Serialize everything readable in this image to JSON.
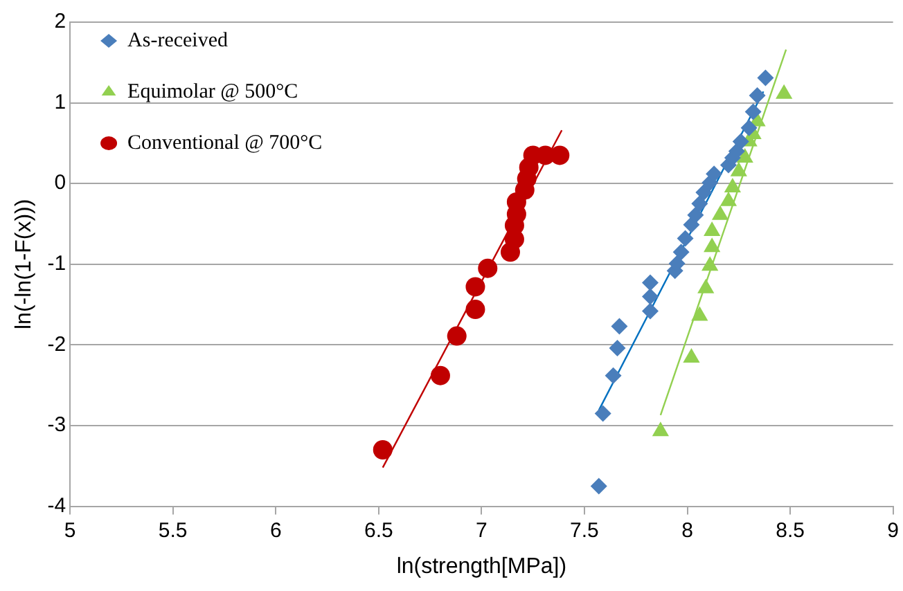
{
  "chart_data": {
    "type": "scatter",
    "xlabel": "ln(strength[MPa])",
    "ylabel": "ln(-ln(1-F(x)))",
    "xlim": [
      5,
      9
    ],
    "ylim": [
      -4,
      2
    ],
    "xticks": [
      5,
      5.5,
      6,
      6.5,
      7,
      7.5,
      8,
      8.5,
      9
    ],
    "yticks": [
      -4,
      -3,
      -2,
      -1,
      0,
      1,
      2
    ],
    "grid": "y",
    "legend": "top left",
    "series": [
      {
        "name": "As-received",
        "color": "#4a7ebb",
        "marker": "diamond",
        "x": [
          7.57,
          7.59,
          7.64,
          7.66,
          7.67,
          7.82,
          7.82,
          7.82,
          7.94,
          7.95,
          7.97,
          7.99,
          8.02,
          8.04,
          8.06,
          8.08,
          8.11,
          8.13,
          8.2,
          8.22,
          8.24,
          8.26,
          8.3,
          8.32,
          8.34,
          8.38
        ],
        "values": [
          -3.75,
          -2.85,
          -2.38,
          -2.04,
          -1.77,
          -1.58,
          -1.4,
          -1.23,
          -1.08,
          -0.99,
          -0.85,
          -0.68,
          -0.51,
          -0.39,
          -0.25,
          -0.11,
          0.01,
          0.12,
          0.23,
          0.32,
          0.4,
          0.52,
          0.69,
          0.89,
          1.09,
          1.31
        ]
      },
      {
        "name": "Equimolar @ 500°C",
        "color": "#92d050",
        "marker": "triangle",
        "x": [
          7.87,
          8.02,
          8.06,
          8.09,
          8.11,
          8.12,
          8.12,
          8.16,
          8.2,
          8.22,
          8.25,
          8.28,
          8.3,
          8.32,
          8.34,
          8.47
        ],
        "values": [
          -3.07,
          -2.16,
          -1.64,
          -1.3,
          -1.02,
          -0.79,
          -0.59,
          -0.39,
          -0.22,
          -0.05,
          0.15,
          0.32,
          0.52,
          0.61,
          0.77,
          1.11
        ]
      },
      {
        "name": "Conventional @ 700°C",
        "color": "#c00000",
        "marker": "circle",
        "x": [
          6.52,
          6.8,
          6.88,
          6.97,
          6.97,
          7.03,
          7.14,
          7.16,
          7.16,
          7.17,
          7.17,
          7.21,
          7.22,
          7.23,
          7.25,
          7.31,
          7.38
        ],
        "values": [
          -3.3,
          -2.38,
          -1.89,
          -1.56,
          -1.28,
          -1.05,
          -0.85,
          -0.69,
          -0.52,
          -0.38,
          -0.23,
          -0.08,
          0.06,
          0.2,
          0.35,
          0.35,
          0.35
        ]
      },
      {
        "type": "line",
        "color": "#0070c0",
        "marker": "none",
        "x": [
          7.57,
          8.37
        ],
        "values": [
          -2.81,
          1.14
        ]
      },
      {
        "type": "line",
        "color": "#92d050",
        "marker": "none",
        "x": [
          7.87,
          8.48
        ],
        "values": [
          -2.87,
          1.66
        ]
      },
      {
        "type": "line",
        "color": "#c00000",
        "marker": "none",
        "x": [
          6.52,
          7.39
        ],
        "values": [
          -3.52,
          0.66
        ]
      }
    ]
  }
}
